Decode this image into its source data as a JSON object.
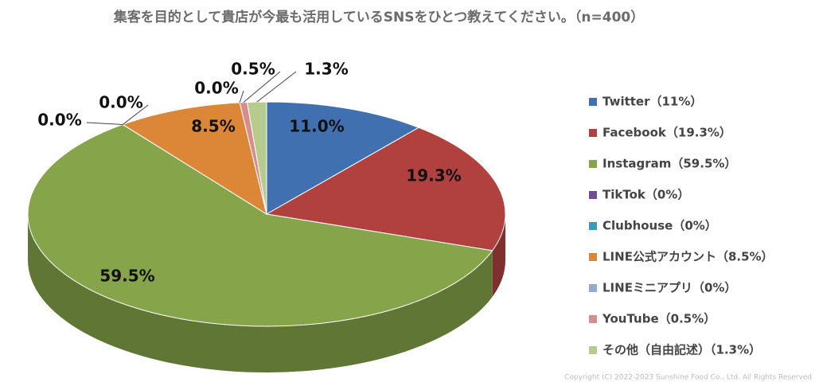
{
  "chart_data": {
    "type": "pie3d",
    "title": "集客を目的として貴店が今最も活用しているSNSをひとつ教えてください。（n=400）",
    "categories": [
      "Twitter（11%）",
      "Facebook（19.3%）",
      "Instagram（59.5%）",
      "TikTok（0%）",
      "Clubhouse（0%）",
      "LINE公式アカウント（8.5%）",
      "LINEミニアプリ（0%）",
      "YouTube（0.5%）",
      "その他（自由記述）（1.3%）"
    ],
    "values": [
      11,
      19.3,
      59.5,
      0,
      0,
      8.5,
      0,
      0.5,
      1.3
    ],
    "value_labels": [
      "11.0%",
      "19.3%",
      "59.5%",
      "0.0%",
      "0.0%",
      "8.5%",
      "0.0%",
      "0.5%",
      "1.3%"
    ],
    "colors": [
      "#4170b0",
      "#b0413e",
      "#86a44a",
      "#6d4f92",
      "#3b9ab6",
      "#dc8738",
      "#93a9d0",
      "#d58e8c",
      "#b5cc8e"
    ],
    "legend": "right",
    "copyright": "Copyright (C) 2022-2023 Sunshine Food Co., Ltd. All Rights Reserved"
  }
}
